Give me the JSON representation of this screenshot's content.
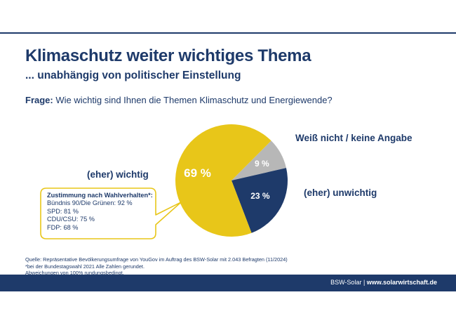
{
  "header": {
    "title": "Klimaschutz weiter wichtiges Thema",
    "subtitle": "... unabhängig von politischer Einstellung",
    "question_label": "Frage:",
    "question_text": " Wie wichtig sind Ihnen die Themen Klimaschutz und Energiewende?"
  },
  "chart_data": {
    "type": "pie",
    "slices": [
      {
        "label": "(eher) wichtig",
        "value": 69,
        "display": "69 %",
        "color": "#e8c619"
      },
      {
        "label": "Weiß nicht / keine Angabe",
        "value": 9,
        "display": "9 %",
        "color": "#b7b7b7"
      },
      {
        "label": "(eher) unwichtig",
        "value": 23,
        "display": "23 %",
        "color": "#1e3a6a"
      }
    ]
  },
  "callout": {
    "heading": "Zustimmung nach Wahlverhalten*:",
    "lines": [
      "Bündnis 90/Die Grünen: 92 %",
      "SPD: 81 %",
      "CDU/CSU: 75 %",
      "FDP: 68 %"
    ]
  },
  "footnotes": [
    "Quelle: Repräsentative Bevölkerungsumfrage von YouGov im Auftrag des BSW-Solar mit 2.043 Befragten (11/2024)",
    "*bei der Bundestagswahl 2021 Alle Zahlen gerundet.",
    "Abweichungen von 100% rundungsbedingt."
  ],
  "footer": {
    "brand": "BSW-Solar",
    "separator": " | ",
    "website": "www.solarwirtschaft.de"
  }
}
